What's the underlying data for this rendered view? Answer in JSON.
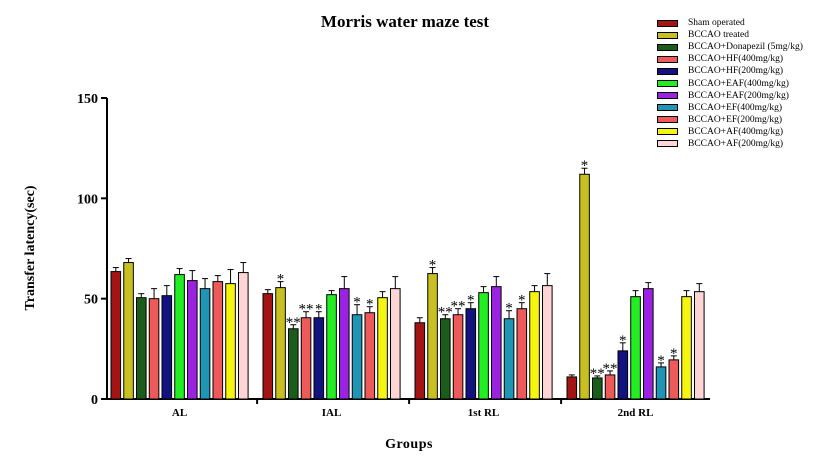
{
  "chart_data": {
    "type": "bar",
    "title": "Morris water maze test",
    "xlabel": "Groups",
    "ylabel": "Transfer latency(sec)",
    "ylim": [
      0,
      150
    ],
    "yticks": [
      0,
      50,
      100,
      150
    ],
    "categories": [
      "AL",
      "IAL",
      "1st RL",
      "2nd RL"
    ],
    "legend_position": "top-right",
    "grid": false,
    "series": [
      {
        "name": "Sham operated",
        "color": "#a31515",
        "values": [
          63.5,
          52.5,
          38,
          11
        ],
        "errors": [
          2,
          2,
          2.5,
          1
        ],
        "marks": [
          "",
          "",
          "",
          ""
        ]
      },
      {
        "name": "BCCAO treated",
        "color": "#c8c020",
        "values": [
          68,
          55.5,
          62.5,
          112
        ],
        "errors": [
          2,
          3,
          3,
          3
        ],
        "marks": [
          "",
          "*",
          "*",
          "*"
        ]
      },
      {
        "name": "BCCAO+Donapezil (5mg/kg)",
        "color": "#1a5c1a",
        "values": [
          50.5,
          35,
          40,
          10.5
        ],
        "errors": [
          2,
          2,
          2,
          1
        ],
        "marks": [
          "",
          "**",
          "**",
          "**"
        ]
      },
      {
        "name": "BCCAO+HF(400mg/kg)",
        "color": "#ee5a5a",
        "values": [
          50,
          40.5,
          42,
          12
        ],
        "errors": [
          5,
          3,
          3,
          2
        ],
        "marks": [
          "",
          "**",
          "**",
          "**"
        ]
      },
      {
        "name": "BCCAO+HF(200mg/kg)",
        "color": "#121280",
        "values": [
          51.5,
          40.5,
          45,
          24
        ],
        "errors": [
          5,
          3,
          3,
          4
        ],
        "marks": [
          "",
          "*",
          "*",
          "*"
        ]
      },
      {
        "name": "BCCAO+EAF(400mg/kg)",
        "color": "#22ee22",
        "values": [
          62,
          52,
          53,
          51
        ],
        "errors": [
          3,
          2,
          3,
          3
        ],
        "marks": [
          "",
          "",
          "",
          ""
        ]
      },
      {
        "name": "BCCAO+EAF(200mg/kg)",
        "color": "#9a22e0",
        "values": [
          59,
          55,
          56,
          55
        ],
        "errors": [
          5,
          6,
          5,
          3
        ],
        "marks": [
          "",
          "",
          "",
          ""
        ]
      },
      {
        "name": "BCCAO+EF(400mg/kg)",
        "color": "#1e96b4",
        "values": [
          55,
          42,
          40,
          16
        ],
        "errors": [
          5,
          5,
          4,
          2
        ],
        "marks": [
          "",
          "*",
          "*",
          "*"
        ]
      },
      {
        "name": "BCCAO+EF(200mg/kg)",
        "color": "#ee5a5a",
        "values": [
          58.5,
          43,
          45,
          19.5
        ],
        "errors": [
          3,
          3,
          3,
          2
        ],
        "marks": [
          "",
          "*",
          "*",
          "*"
        ]
      },
      {
        "name": "BCCAO+AF(400mg/kg)",
        "color": "#f5f510",
        "values": [
          57.5,
          50.5,
          53.5,
          51
        ],
        "errors": [
          7,
          3,
          3,
          3
        ],
        "marks": [
          "",
          "",
          "",
          ""
        ]
      },
      {
        "name": "BCCAO+AF(200mg/kg)",
        "color": "#fdd5d5",
        "values": [
          63,
          55,
          56.5,
          53.5
        ],
        "errors": [
          5,
          6,
          6,
          4
        ],
        "marks": [
          "",
          "",
          "",
          ""
        ]
      }
    ]
  }
}
